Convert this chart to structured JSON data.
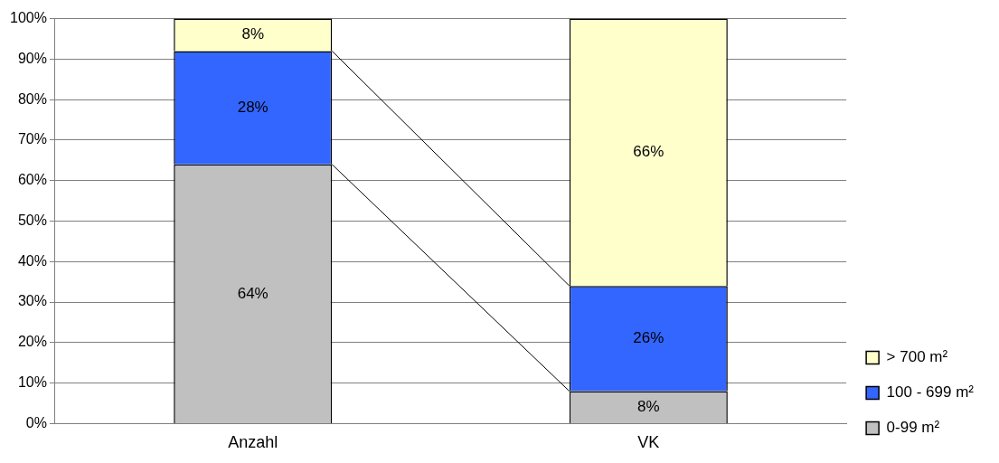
{
  "chart_data": {
    "type": "bar",
    "stacked": true,
    "categories": [
      "Anzahl",
      "VK"
    ],
    "series": [
      {
        "name": "0-99 m²",
        "color": "#c0c0c0",
        "values": [
          64,
          8
        ],
        "value_labels": [
          "64%",
          "8%"
        ]
      },
      {
        "name": "100 - 699 m²",
        "color": "#3366ff",
        "values": [
          28,
          26
        ],
        "value_labels": [
          "28%",
          "26%"
        ]
      },
      {
        "name": "> 700 m²",
        "color": "#ffffcc",
        "values": [
          8,
          66
        ],
        "value_labels": [
          "8%",
          "66%"
        ]
      }
    ],
    "ylim": [
      0,
      100
    ],
    "yticks": [
      {
        "value": 0,
        "label": "0%"
      },
      {
        "value": 10,
        "label": "10%"
      },
      {
        "value": 20,
        "label": "20%"
      },
      {
        "value": 30,
        "label": "30%"
      },
      {
        "value": 40,
        "label": "40%"
      },
      {
        "value": 50,
        "label": "50%"
      },
      {
        "value": 60,
        "label": "60%"
      },
      {
        "value": 70,
        "label": "70%"
      },
      {
        "value": 80,
        "label": "80%"
      },
      {
        "value": 90,
        "label": "90%"
      },
      {
        "value": 100,
        "label": "100%"
      }
    ],
    "grid": "y",
    "legend": "right"
  }
}
